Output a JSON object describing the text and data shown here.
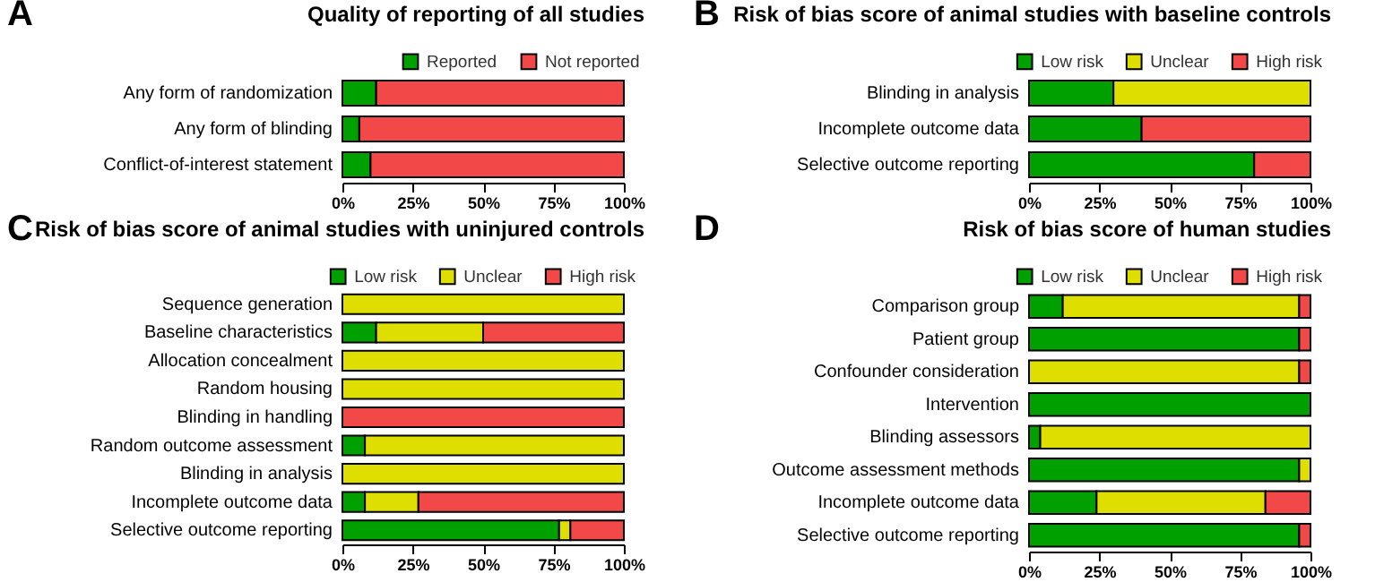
{
  "chart_data": [
    {
      "type": "bar",
      "orientation": "horizontal",
      "stacked": true,
      "title": "Quality of reporting of all studies",
      "annotations": [
        "A"
      ],
      "legend": "top right",
      "categories": [
        "Any form of randomization",
        "Any form of blinding",
        "Conflict-of-interest statement"
      ],
      "series": [
        {
          "name": "Reported",
          "color": "#00a000",
          "values": [
            12,
            6,
            10
          ]
        },
        {
          "name": "Not reported",
          "color": "#f24848",
          "values": [
            88,
            94,
            90
          ]
        }
      ],
      "xlim": [
        0,
        100
      ],
      "xticks": [
        {
          "value": 0,
          "label": "0%"
        },
        {
          "value": 25,
          "label": "25%"
        },
        {
          "value": 50,
          "label": "50%"
        },
        {
          "value": 75,
          "label": "75%"
        },
        {
          "value": 100,
          "label": "100%"
        }
      ]
    },
    {
      "type": "bar",
      "orientation": "horizontal",
      "stacked": true,
      "title": "Risk of bias score of animal studies with baseline controls",
      "annotations": [
        "B"
      ],
      "legend": "top right",
      "categories": [
        "Blinding in analysis",
        "Incomplete outcome data",
        "Selective outcome reporting"
      ],
      "series": [
        {
          "name": "Low risk",
          "color": "#00a000",
          "values": [
            30,
            40,
            80
          ]
        },
        {
          "name": "Unclear",
          "color": "#dede00",
          "values": [
            70,
            0,
            0
          ]
        },
        {
          "name": "High risk",
          "color": "#f24848",
          "values": [
            0,
            60,
            20
          ]
        }
      ],
      "xlim": [
        0,
        100
      ],
      "xticks": [
        {
          "value": 0,
          "label": "0%"
        },
        {
          "value": 25,
          "label": "25%"
        },
        {
          "value": 50,
          "label": "50%"
        },
        {
          "value": 75,
          "label": "75%"
        },
        {
          "value": 100,
          "label": "100%"
        }
      ]
    },
    {
      "type": "bar",
      "orientation": "horizontal",
      "stacked": true,
      "title": "Risk of bias score of animal studies with uninjured controls",
      "annotations": [
        "C"
      ],
      "legend": "top right",
      "categories": [
        "Sequence generation",
        "Baseline characteristics",
        "Allocation concealment",
        "Random housing",
        "Blinding in handling",
        "Random outcome assessment",
        "Blinding in analysis",
        "Incomplete outcome data",
        "Selective outcome reporting"
      ],
      "series": [
        {
          "name": "Low risk",
          "color": "#00a000",
          "values": [
            0,
            12,
            0,
            0,
            0,
            8,
            0,
            8,
            77
          ]
        },
        {
          "name": "Unclear",
          "color": "#dede00",
          "values": [
            100,
            38,
            100,
            100,
            0,
            92,
            100,
            19,
            4
          ]
        },
        {
          "name": "High risk",
          "color": "#f24848",
          "values": [
            0,
            50,
            0,
            0,
            100,
            0,
            0,
            73,
            19
          ]
        }
      ],
      "xlim": [
        0,
        100
      ],
      "xticks": [
        {
          "value": 0,
          "label": "0%"
        },
        {
          "value": 25,
          "label": "25%"
        },
        {
          "value": 50,
          "label": "50%"
        },
        {
          "value": 75,
          "label": "75%"
        },
        {
          "value": 100,
          "label": "100%"
        }
      ]
    },
    {
      "type": "bar",
      "orientation": "horizontal",
      "stacked": true,
      "title": "Risk of bias score of human studies",
      "annotations": [
        "D"
      ],
      "legend": "top right",
      "categories": [
        "Comparison group",
        "Patient group",
        "Confounder consideration",
        "Intervention",
        "Blinding assessors",
        "Outcome assessment methods",
        "Incomplete outcome data",
        "Selective outcome reporting"
      ],
      "series": [
        {
          "name": "Low risk",
          "color": "#00a000",
          "values": [
            12,
            96,
            0,
            100,
            4,
            96,
            24,
            96
          ]
        },
        {
          "name": "Unclear",
          "color": "#dede00",
          "values": [
            84,
            0,
            96,
            0,
            96,
            4,
            60,
            0
          ]
        },
        {
          "name": "High risk",
          "color": "#f24848",
          "values": [
            4,
            4,
            4,
            0,
            0,
            0,
            16,
            4
          ]
        }
      ],
      "xlim": [
        0,
        100
      ],
      "xticks": [
        {
          "value": 0,
          "label": "0%"
        },
        {
          "value": 25,
          "label": "25%"
        },
        {
          "value": 50,
          "label": "50%"
        },
        {
          "value": 75,
          "label": "75%"
        },
        {
          "value": 100,
          "label": "100%"
        }
      ]
    }
  ]
}
